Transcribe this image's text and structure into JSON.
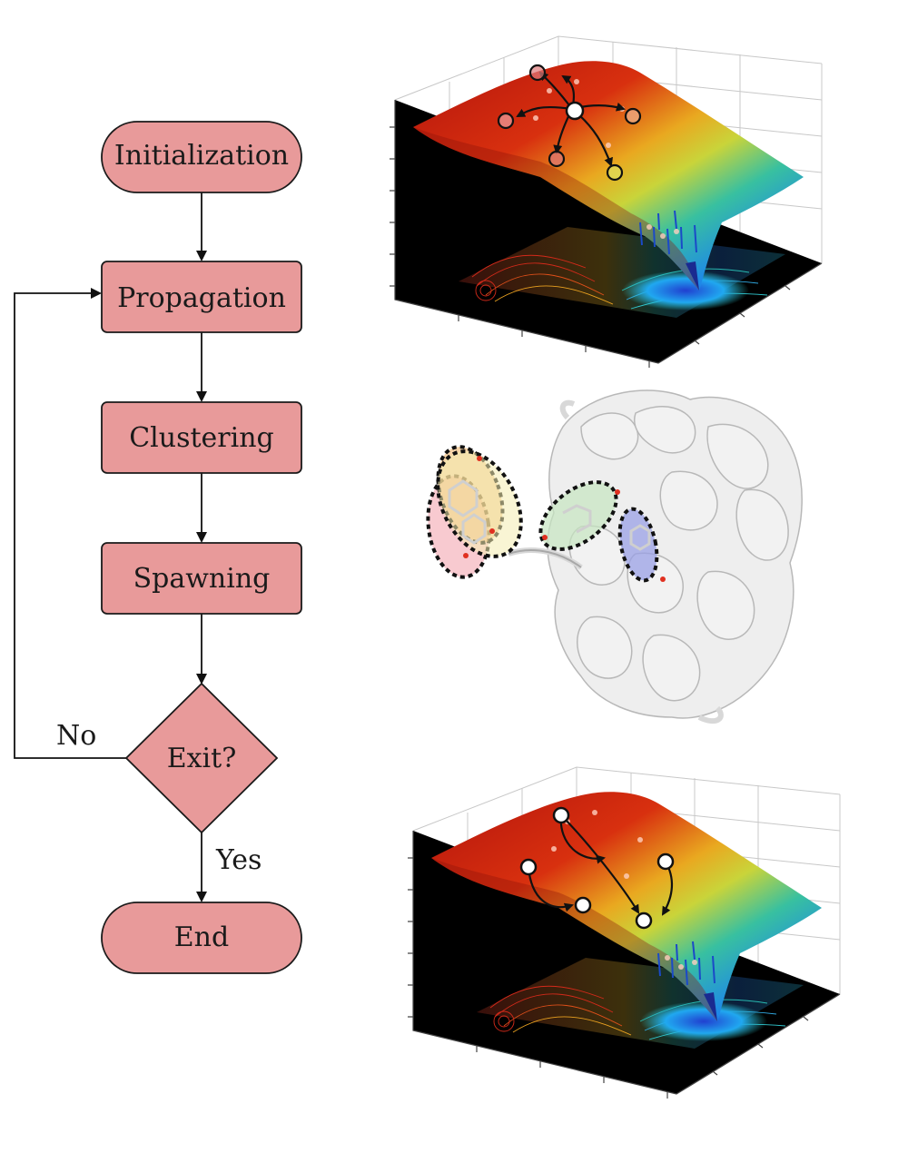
{
  "flowchart": {
    "nodes": {
      "initialization": "Initialization",
      "propagation": "Propagation",
      "clustering": "Clustering",
      "spawning": "Spawning",
      "exit": "Exit?",
      "end": "End"
    },
    "edges": {
      "no": "No",
      "yes": "Yes"
    }
  },
  "colors": {
    "node_fill": "#e89a9a",
    "node_stroke": "#1a1a1a",
    "surface_high": "#c81e10",
    "surface_mid": "#f2d23a",
    "surface_low": "#1e88e8",
    "cluster_orange": "#f0b060",
    "cluster_pink": "#f5b8c0",
    "cluster_yellow": "#f4ecb0",
    "cluster_green": "#c6e6c0",
    "cluster_blue": "#9aa0e6"
  },
  "icons": {
    "top_panel": "energy-landscape-branching-walkers",
    "middle_panel": "protein-ribbon-with-clusters",
    "bottom_panel": "energy-landscape-merging-walkers"
  }
}
